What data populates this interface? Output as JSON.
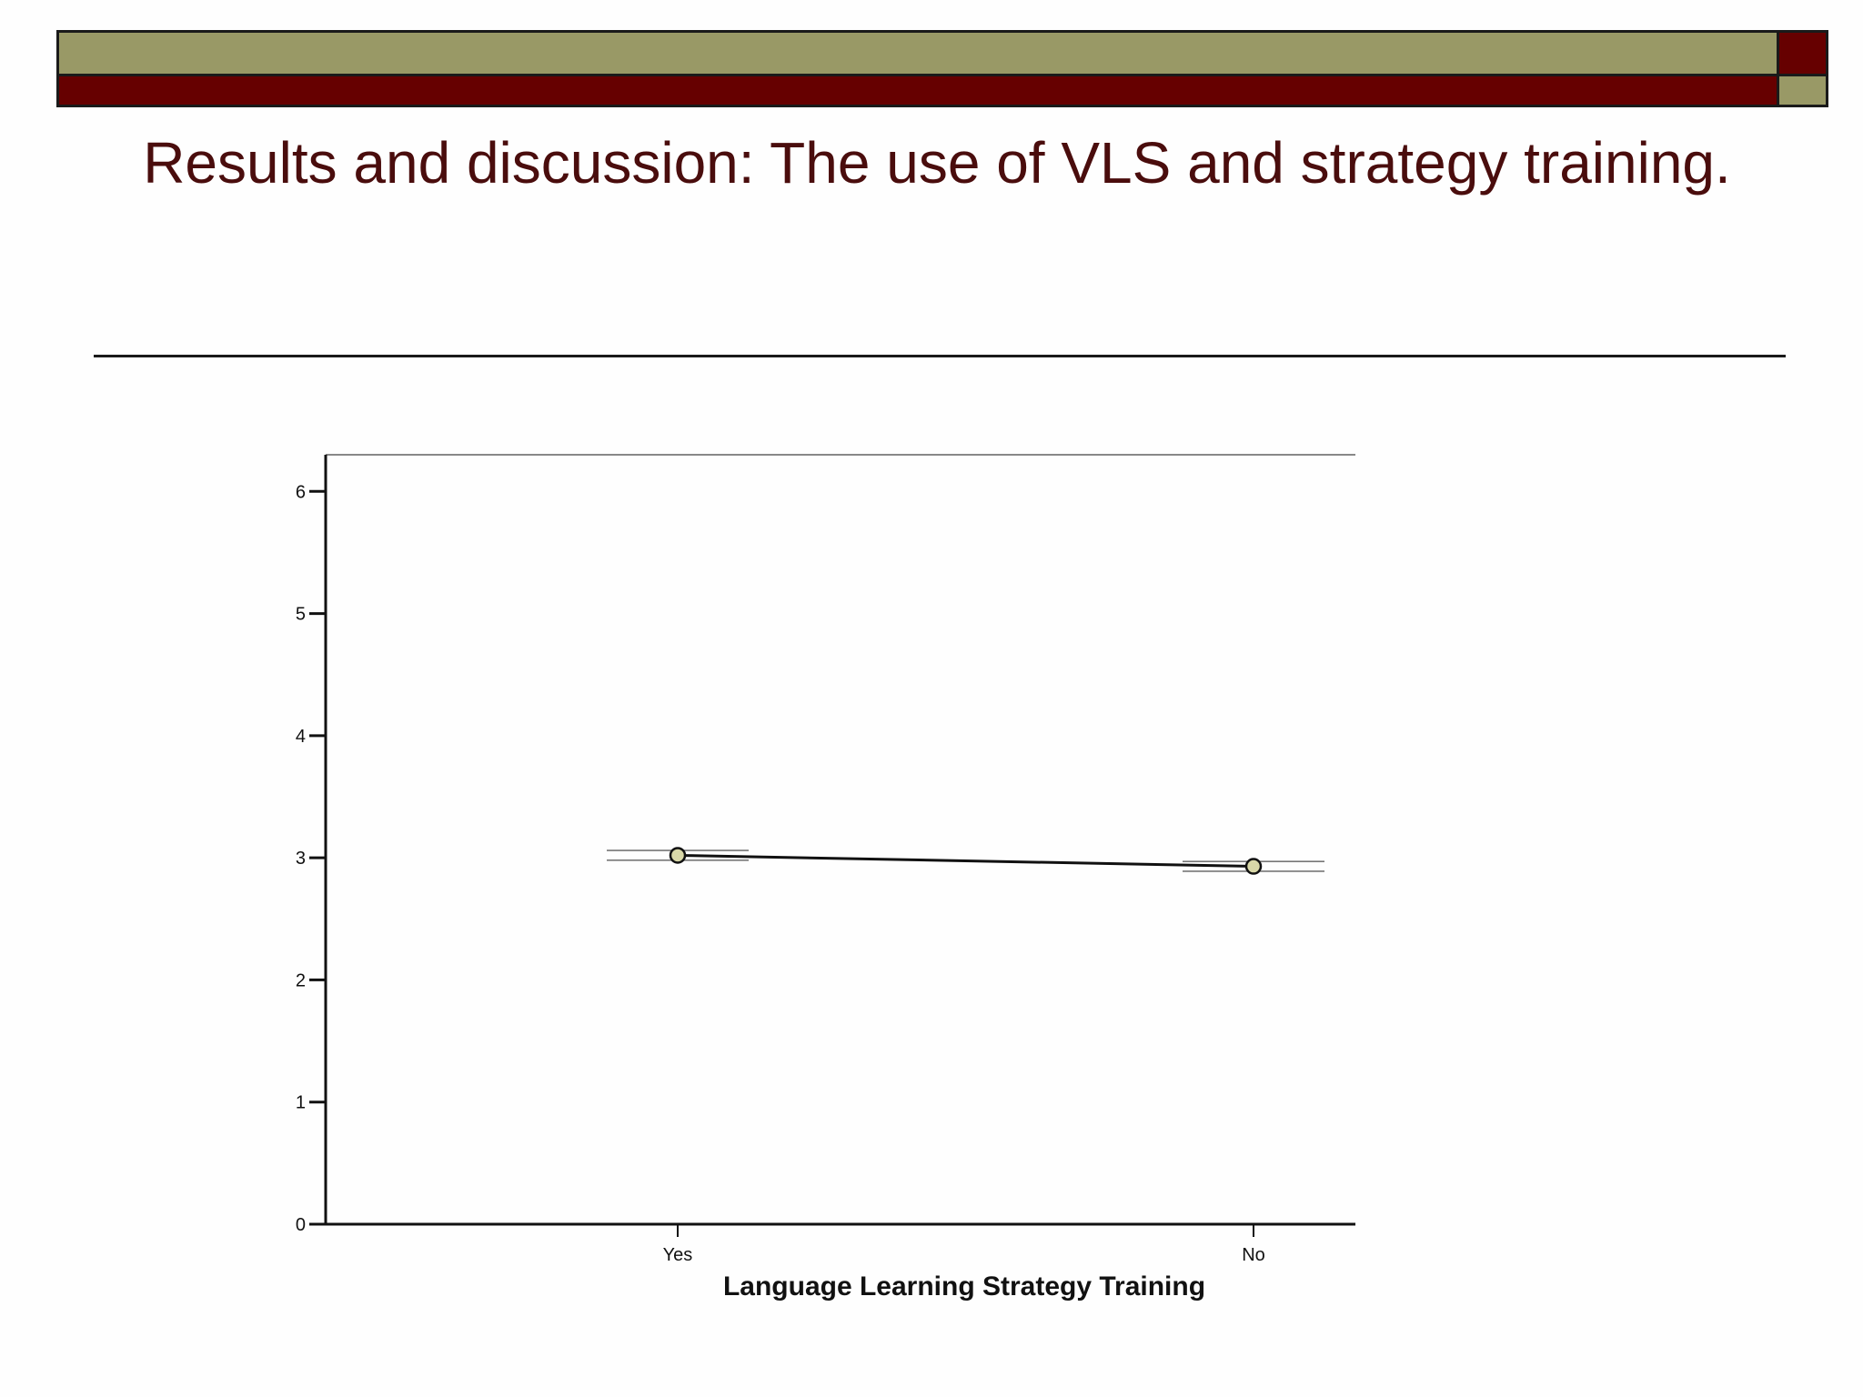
{
  "slide": {
    "title": "Results and discussion: The use of VLS and strategy training."
  },
  "colors": {
    "olive": "#999966",
    "maroon": "#660000",
    "title_text": "#4a0d0d",
    "marker_fill": "#d9d8a8"
  },
  "chart_data": {
    "type": "line",
    "xlabel": "Language Learning Strategy Training",
    "ylabel": "",
    "categories": [
      "Yes",
      "No"
    ],
    "series": [
      {
        "values": [
          3.02,
          2.93
        ],
        "interval_upper": [
          3.06,
          2.97
        ],
        "interval_lower": [
          2.98,
          2.89
        ]
      }
    ],
    "ylim": [
      0,
      6.3
    ],
    "yticks": [
      0,
      1,
      2,
      3,
      4,
      5,
      6
    ],
    "grid": false
  }
}
